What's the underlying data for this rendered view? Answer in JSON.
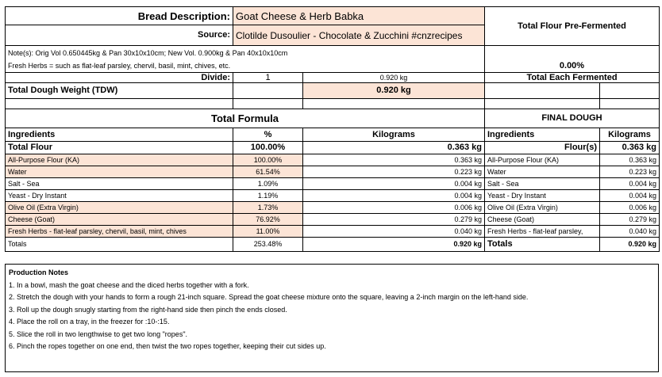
{
  "header": {
    "bread_label": "Bread Description:",
    "bread_value": "Goat Cheese & Herb Babka",
    "source_label": "Source:",
    "source_value": "Clotilde Dusoulier - Chocolate & Zucchini  #cnzrecipes",
    "pre_fermented_title": "Total Flour Pre-Fermented",
    "pre_fermented_value": "0.00%",
    "notes_line1": "Note(s): Orig Vol 0.650445kg & Pan 30x10x10cm; New Vol.  0.900kg & Pan 40x10x10cm",
    "notes_line2": "Fresh Herbs = such as flat-leaf parsley, chervil, basil, mint, chives, etc.",
    "divide_label": "Divide:",
    "divide_value": "1",
    "divide_weight": "0.920 kg",
    "each_fermented": "Total Each Fermented",
    "tdw_label": "Total Dough Weight (TDW)",
    "tdw_value": "0.920 kg"
  },
  "total_formula": {
    "title": "Total Formula",
    "col_ingredients": "Ingredients",
    "col_percent": "%",
    "col_kg": "Kilograms",
    "total_flour_label": "Total Flour",
    "total_flour_pct": "100.00%",
    "total_flour_kg": "0.363 kg",
    "rows": [
      {
        "name": "All-Purpose Flour (KA)",
        "pct": "100.00%",
        "kg": "0.363 kg"
      },
      {
        "name": "Water",
        "pct": "61.54%",
        "kg": "0.223 kg"
      },
      {
        "name": "Salt - Sea",
        "pct": "1.09%",
        "kg": "0.004 kg"
      },
      {
        "name": "Yeast - Dry Instant",
        "pct": "1.19%",
        "kg": "0.004 kg"
      },
      {
        "name": "Olive Oil (Extra Virgin)",
        "pct": "1.73%",
        "kg": "0.006 kg"
      },
      {
        "name": "Cheese (Goat)",
        "pct": "76.92%",
        "kg": "0.279 kg"
      },
      {
        "name": "Fresh Herbs - flat-leaf parsley, chervil, basil, mint, chives",
        "pct": "11.00%",
        "kg": "0.040 kg"
      }
    ],
    "totals_label": "Totals",
    "totals_pct": "253.48%",
    "totals_kg": "0.920 kg"
  },
  "final_dough": {
    "title": "FINAL DOUGH",
    "col_ingredients": "Ingredients",
    "col_kg": "Kilograms",
    "flours_label": "Flour(s)",
    "flours_kg": "0.363 kg",
    "rows": [
      {
        "name": "All-Purpose Flour (KA)",
        "kg": "0.363 kg"
      },
      {
        "name": "Water",
        "kg": "0.223 kg"
      },
      {
        "name": "Salt - Sea",
        "kg": "0.004 kg"
      },
      {
        "name": "Yeast - Dry Instant",
        "kg": "0.004 kg"
      },
      {
        "name": "Olive Oil (Extra Virgin)",
        "kg": "0.006 kg"
      },
      {
        "name": "Cheese (Goat)",
        "kg": "0.279 kg"
      },
      {
        "name": "Fresh Herbs - flat-leaf parsley,",
        "kg": "0.040 kg"
      }
    ],
    "totals_label": "Totals",
    "totals_kg": "0.920 kg"
  },
  "production_notes": {
    "title": "Production Notes",
    "steps": [
      "1. In a bowl, mash the goat cheese and the diced herbs together with a fork.",
      "2. Stretch the dough with your hands to form a rough 21-inch square. Spread the goat cheese mixture onto the square, leaving a 2-inch margin on the left-hand side.",
      "3. Roll up the dough snugly starting from the right-hand side then pinch the ends closed.",
      "4. Place the roll on a tray, in the freezer for :10-:15.",
      "5. Slice the roll in two lengthwise to get two long \"ropes\".",
      "6. Pinch the ropes together on one end, then twist the two ropes together, keeping their cut sides up."
    ]
  }
}
